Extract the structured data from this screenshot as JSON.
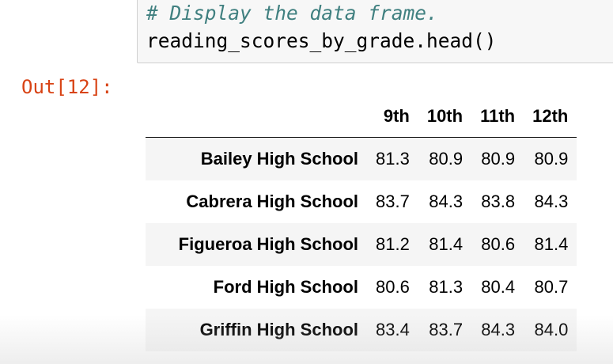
{
  "code_cell": {
    "comment": "# Display the data frame.",
    "statement": "reading_scores_by_grade.head()"
  },
  "output": {
    "prompt": "Out[12]:",
    "columns": [
      "9th",
      "10th",
      "11th",
      "12th"
    ],
    "rows": [
      {
        "index": "Bailey High School",
        "values": [
          "81.3",
          "80.9",
          "80.9",
          "80.9"
        ]
      },
      {
        "index": "Cabrera High School",
        "values": [
          "83.7",
          "84.3",
          "83.8",
          "84.3"
        ]
      },
      {
        "index": "Figueroa High School",
        "values": [
          "81.2",
          "81.4",
          "80.6",
          "81.4"
        ]
      },
      {
        "index": "Ford High School",
        "values": [
          "80.6",
          "81.3",
          "80.4",
          "80.7"
        ]
      },
      {
        "index": "Griffin High School",
        "values": [
          "83.4",
          "83.7",
          "84.3",
          "84.0"
        ]
      }
    ]
  },
  "colors": {
    "comment": "#408080",
    "prompt_out": "#d84315",
    "cell_background": "#f7f7f7",
    "row_stripe": "#f5f5f5"
  }
}
